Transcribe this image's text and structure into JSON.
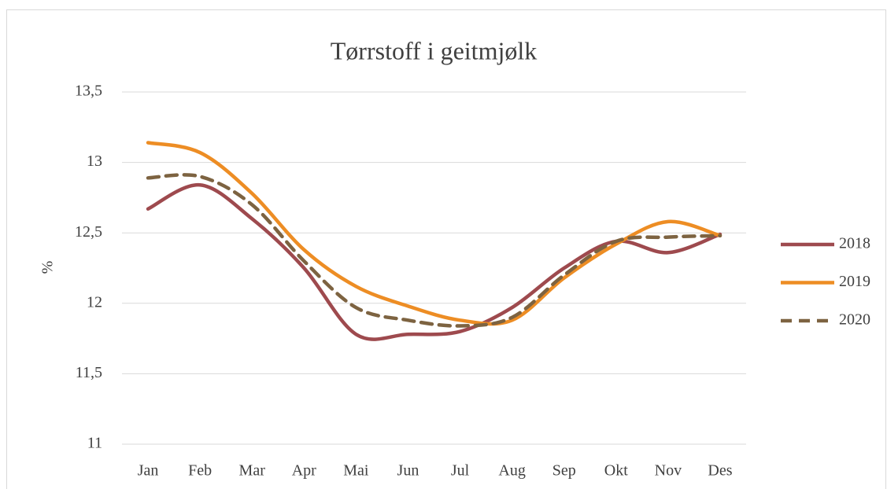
{
  "chart_data": {
    "type": "line",
    "title": "Tørrstoff i geitmjølk",
    "y_label": "%",
    "categories": [
      "Jan",
      "Feb",
      "Mar",
      "Apr",
      "Mai",
      "Jun",
      "Jul",
      "Aug",
      "Sep",
      "Okt",
      "Nov",
      "Des"
    ],
    "series": [
      {
        "name": "2018",
        "color": "#9e4a4e",
        "line_style": "solid",
        "values": [
          12.67,
          12.84,
          12.6,
          12.25,
          11.78,
          11.78,
          11.8,
          11.97,
          12.25,
          12.44,
          12.36,
          12.49
        ]
      },
      {
        "name": "2019",
        "color": "#ed8d24",
        "line_style": "solid",
        "values": [
          13.14,
          13.07,
          12.78,
          12.38,
          12.12,
          11.98,
          11.88,
          11.88,
          12.18,
          12.42,
          12.58,
          12.48
        ]
      },
      {
        "name": "2020",
        "color": "#7d6341",
        "line_style": "dashed",
        "values": [
          12.89,
          12.9,
          12.7,
          12.3,
          11.97,
          11.88,
          11.84,
          11.9,
          12.2,
          12.44,
          12.47,
          12.48
        ]
      }
    ],
    "ylim": [
      11,
      13.5
    ],
    "yticks": [
      11,
      {
        "value": 11.5,
        "label": "11,5"
      },
      12,
      {
        "value": 12.5,
        "label": "12,5"
      },
      13,
      {
        "value": 13.5,
        "label": "13,5"
      }
    ],
    "grid": true,
    "smooth": true,
    "legend": "right"
  }
}
